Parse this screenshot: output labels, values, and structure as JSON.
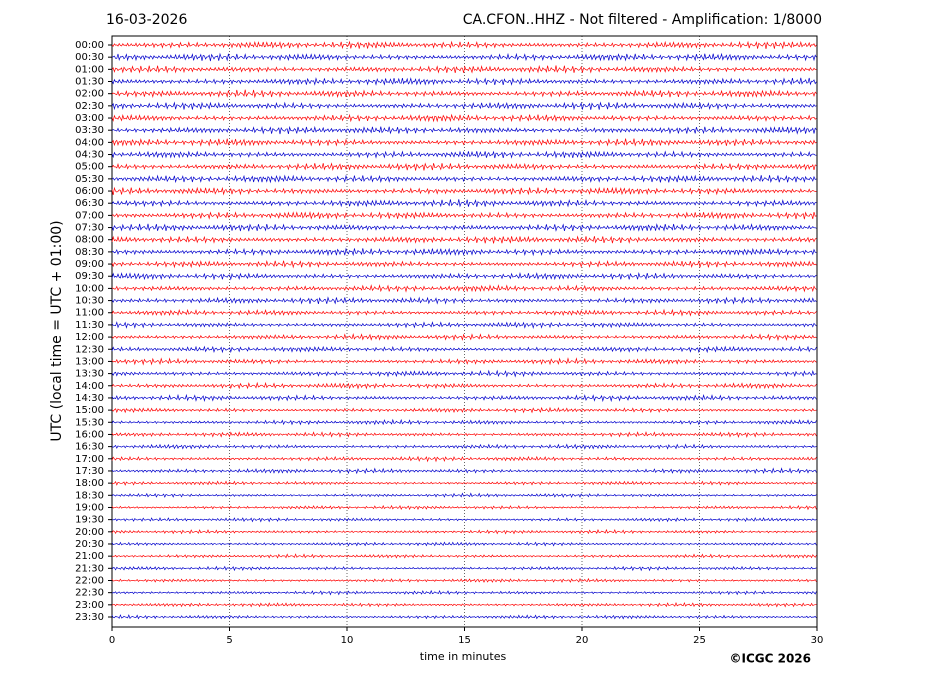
{
  "chart_data": {
    "type": "helicorder",
    "date": "16-03-2026",
    "title": "CA.CFON..HHZ - Not filtered - Amplification: 1/8000",
    "ylabel": "UTC (local time = UTC + 01:00)",
    "xlabel": "time in minutes",
    "copyright": "©ICGC 2026",
    "categories": [
      "00:00",
      "00:30",
      "01:00",
      "01:30",
      "02:00",
      "02:30",
      "03:00",
      "03:30",
      "04:00",
      "04:30",
      "05:00",
      "05:30",
      "06:00",
      "06:30",
      "07:00",
      "07:30",
      "08:00",
      "08:30",
      "09:00",
      "09:30",
      "10:00",
      "10:30",
      "11:00",
      "11:30",
      "12:00",
      "12:30",
      "13:00",
      "13:30",
      "14:00",
      "14:30",
      "15:00",
      "15:30",
      "16:00",
      "16:30",
      "17:00",
      "17:30",
      "18:00",
      "18:30",
      "19:00",
      "19:30",
      "20:00",
      "20:30",
      "21:00",
      "21:30",
      "22:00",
      "22:30",
      "23:00",
      "23:30"
    ],
    "colors": [
      "#ff0000",
      "#0000cc"
    ],
    "amplitude": [
      4,
      4,
      4,
      4,
      4,
      4,
      4,
      4,
      4,
      4,
      4,
      4,
      4,
      4,
      4,
      4,
      4,
      4,
      3.5,
      3.5,
      3.5,
      3.5,
      3,
      3,
      3,
      3,
      3,
      3,
      3,
      3,
      2.5,
      2.5,
      2.5,
      2.5,
      2.5,
      2.5,
      2,
      2,
      2,
      2,
      2,
      2,
      2,
      2,
      2,
      2,
      2,
      2
    ],
    "xlim": [
      0,
      30
    ],
    "xticks": [
      0,
      5,
      10,
      15,
      20,
      25,
      30
    ],
    "grid": true
  }
}
